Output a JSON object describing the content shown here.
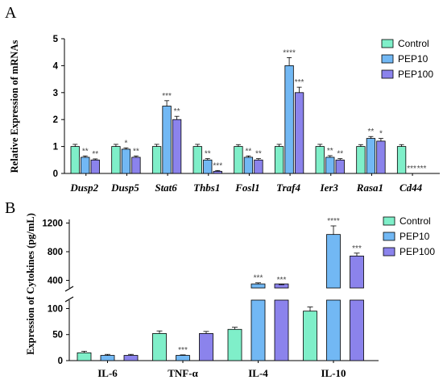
{
  "colors": {
    "Control": "#7fefc9",
    "PEP10": "#72b8f4",
    "PEP100": "#8b83ec",
    "stroke": "#000000"
  },
  "chart_data": [
    {
      "panel": "A",
      "type": "bar",
      "ylabel": "Relative Expression of mRNAs",
      "xlabel": "",
      "ylim": [
        0,
        5
      ],
      "yticks": [
        "0",
        "1",
        "2",
        "3",
        "4",
        "5"
      ],
      "categories": [
        "Dusp2",
        "Dusp5",
        "Stat6",
        "Thbs1",
        "Fosl1",
        "Traf4",
        "Ier3",
        "Rasa1",
        "Cd44"
      ],
      "italic_categories": true,
      "legend_position": "top-right",
      "series": [
        {
          "name": "Control",
          "values": [
            1.0,
            1.0,
            1.0,
            1.0,
            1.0,
            1.0,
            1.0,
            1.0,
            1.0
          ],
          "errors": [
            0.08,
            0.08,
            0.08,
            0.08,
            0.07,
            0.08,
            0.08,
            0.07,
            0.07
          ],
          "sig": [
            "",
            "",
            "",
            "",
            "",
            "",
            "",
            "",
            ""
          ]
        },
        {
          "name": "PEP10",
          "values": [
            0.6,
            0.9,
            2.5,
            0.5,
            0.6,
            4.0,
            0.6,
            1.3,
            0.0
          ],
          "errors": [
            0.05,
            0.05,
            0.2,
            0.05,
            0.05,
            0.3,
            0.06,
            0.07,
            0
          ],
          "sig": [
            "**",
            "*",
            "***",
            "**",
            "**",
            "****",
            "**",
            "**",
            "***"
          ]
        },
        {
          "name": "PEP100",
          "values": [
            0.5,
            0.6,
            2.0,
            0.08,
            0.5,
            3.0,
            0.5,
            1.2,
            0.0
          ],
          "errors": [
            0.04,
            0.05,
            0.12,
            0.03,
            0.05,
            0.2,
            0.05,
            0.1,
            0
          ],
          "sig": [
            "**",
            "**",
            "**",
            "***",
            "**",
            "***",
            "**",
            "*",
            "***"
          ]
        }
      ]
    },
    {
      "panel": "B",
      "type": "bar",
      "ylabel": "Expression of Cytokines (pg/mL)",
      "xlabel": "",
      "axis_break": true,
      "lower_ylim": [
        0,
        110
      ],
      "upper_ylim": [
        350,
        1250
      ],
      "yticks_lower": [
        "0",
        "50",
        "100"
      ],
      "yticks_upper": [
        "400",
        "800",
        "1200"
      ],
      "categories": [
        "IL-6",
        "TNF-α",
        "IL-4",
        "IL-10"
      ],
      "legend_position": "top-right",
      "series": [
        {
          "name": "Control",
          "values": [
            15,
            52,
            60,
            95
          ],
          "errors": [
            3,
            5,
            4,
            8
          ],
          "sig": [
            "",
            "",
            "",
            ""
          ]
        },
        {
          "name": "PEP10",
          "values": [
            10,
            10,
            350,
            1040
          ],
          "errors": [
            2,
            1,
            15,
            120
          ],
          "sig": [
            "",
            "***",
            "***",
            "****"
          ]
        },
        {
          "name": "PEP100",
          "values": [
            10,
            52,
            320,
            740
          ],
          "errors": [
            2,
            4,
            20,
            40
          ],
          "sig": [
            "",
            "",
            "***",
            "***"
          ]
        }
      ]
    }
  ]
}
